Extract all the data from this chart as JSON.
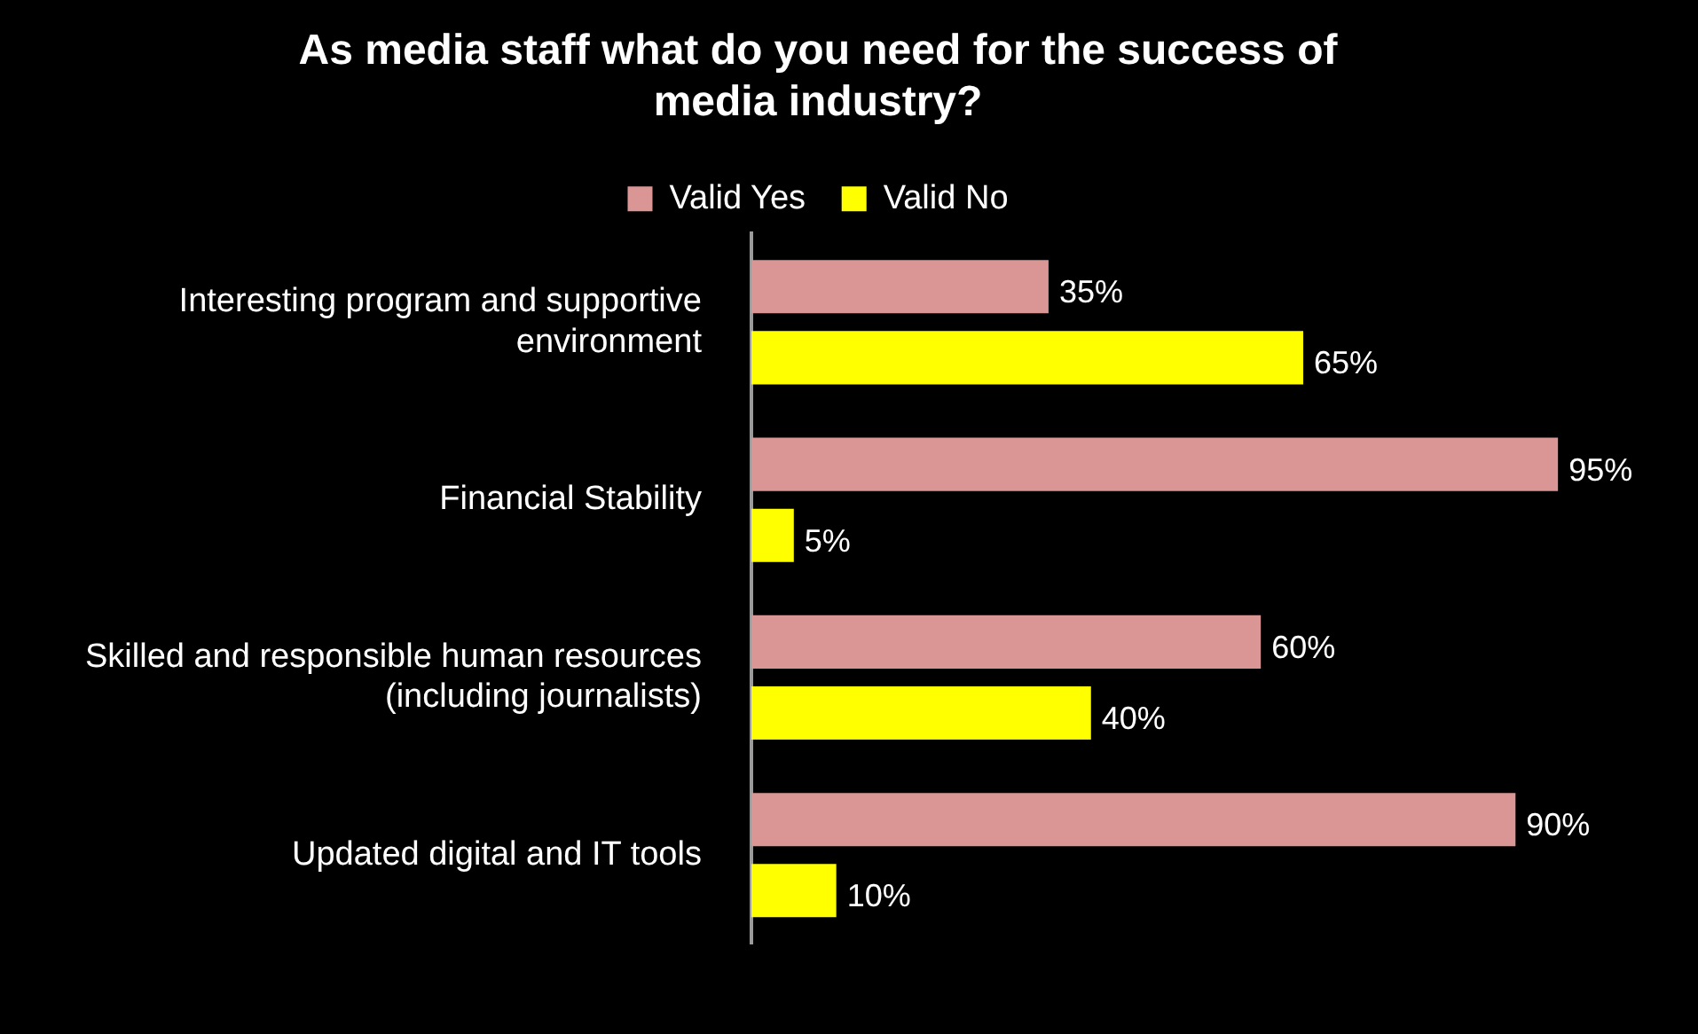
{
  "chart_data": {
    "type": "bar",
    "orientation": "horizontal",
    "title": "As media staff what do you need for the success of media industry?",
    "categories": [
      "Interesting program and supportive environment",
      "Financial Stability",
      "Skilled and responsible human resources (including journalists)",
      "Updated digital and IT tools"
    ],
    "series": [
      {
        "name": "Valid Yes",
        "color": "#d99694",
        "values": [
          35,
          95,
          60,
          90
        ],
        "value_labels": [
          "35%",
          "95%",
          "60%",
          "90%"
        ]
      },
      {
        "name": "Valid No",
        "color": "#ffff00",
        "values": [
          65,
          5,
          40,
          10
        ],
        "value_labels": [
          "65%",
          "5%",
          "40%",
          "10%"
        ]
      }
    ],
    "legend": "top",
    "tick_labels": "y"
  }
}
